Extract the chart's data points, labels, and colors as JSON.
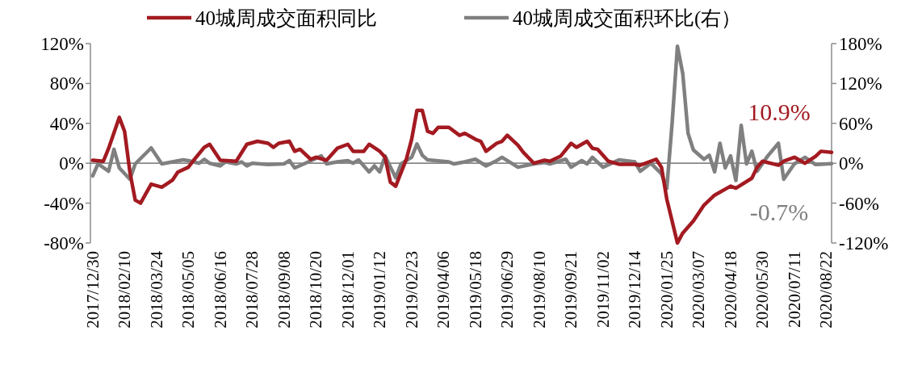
{
  "chart_data": {
    "type": "line",
    "legend": "top",
    "xlim": [
      "2017-12-27",
      "2020-08-29"
    ],
    "xticks": [
      {
        "value": "2017-12-30",
        "label": "2017/12/30"
      },
      {
        "value": "2018-02-10",
        "label": "2018/02/10"
      },
      {
        "value": "2018-03-24",
        "label": "2018/03/24"
      },
      {
        "value": "2018-05-05",
        "label": "2018/05/05"
      },
      {
        "value": "2018-06-16",
        "label": "2018/06/16"
      },
      {
        "value": "2018-07-28",
        "label": "2018/07/28"
      },
      {
        "value": "2018-09-08",
        "label": "2018/09/08"
      },
      {
        "value": "2018-10-20",
        "label": "2018/10/20"
      },
      {
        "value": "2018-12-01",
        "label": "2018/12/01"
      },
      {
        "value": "2019-01-12",
        "label": "2019/01/12"
      },
      {
        "value": "2019-02-23",
        "label": "2019/02/23"
      },
      {
        "value": "2019-04-06",
        "label": "2019/04/06"
      },
      {
        "value": "2019-05-18",
        "label": "2019/05/18"
      },
      {
        "value": "2019-06-29",
        "label": "2019/06/29"
      },
      {
        "value": "2019-08-10",
        "label": "2019/08/10"
      },
      {
        "value": "2019-09-21",
        "label": "2019/09/21"
      },
      {
        "value": "2019-11-02",
        "label": "2019/11/02"
      },
      {
        "value": "2019-12-14",
        "label": "2019/12/14"
      },
      {
        "value": "2020-01-25",
        "label": "2020/01/25"
      },
      {
        "value": "2020-03-07",
        "label": "2020/03/07"
      },
      {
        "value": "2020-04-18",
        "label": "2020/04/18"
      },
      {
        "value": "2020-05-30",
        "label": "2020/05/30"
      },
      {
        "value": "2020-07-11",
        "label": "2020/07/11"
      },
      {
        "value": "2020-08-22",
        "label": "2020/08/22"
      }
    ],
    "ylim": [
      -80,
      120
    ],
    "yticks": [
      {
        "value": -80,
        "label": "-80%"
      },
      {
        "value": -40,
        "label": "-40%"
      },
      {
        "value": 0,
        "label": "0%"
      },
      {
        "value": 40,
        "label": "40%"
      },
      {
        "value": 80,
        "label": "80%"
      },
      {
        "value": 120,
        "label": "120%"
      }
    ],
    "y2lim": [
      -120,
      180
    ],
    "y2ticks": [
      {
        "value": -120,
        "label": "-120%"
      },
      {
        "value": -60,
        "label": "-60%"
      },
      {
        "value": 0,
        "label": "0%"
      },
      {
        "value": 60,
        "label": "60%"
      },
      {
        "value": 120,
        "label": "120%"
      },
      {
        "value": 180,
        "label": "180%"
      }
    ],
    "annotations": [
      {
        "text": "10.9%",
        "x": "2020-08-29",
        "y": 10.9
      },
      {
        "text": "-0.7%",
        "x": "2020-08-29",
        "y": -0.7
      }
    ],
    "series": [
      {
        "name": "40城周成交面积同比",
        "color": "#a31a21",
        "x": [
          "2017-12-30",
          "2018-01-13",
          "2018-01-20",
          "2018-02-03",
          "2018-02-10",
          "2018-02-17",
          "2018-02-24",
          "2018-03-03",
          "2018-03-17",
          "2018-03-31",
          "2018-04-14",
          "2018-04-21",
          "2018-05-05",
          "2018-05-12",
          "2018-05-26",
          "2018-06-02",
          "2018-06-16",
          "2018-07-07",
          "2018-07-21",
          "2018-08-04",
          "2018-08-18",
          "2018-08-25",
          "2018-09-01",
          "2018-09-15",
          "2018-09-22",
          "2018-09-29",
          "2018-10-13",
          "2018-10-20",
          "2018-11-03",
          "2018-11-17",
          "2018-12-01",
          "2018-12-08",
          "2018-12-22",
          "2018-12-29",
          "2019-01-12",
          "2019-01-19",
          "2019-01-26",
          "2019-02-02",
          "2019-02-16",
          "2019-02-23",
          "2019-03-02",
          "2019-03-09",
          "2019-03-16",
          "2019-03-23",
          "2019-03-30",
          "2019-04-13",
          "2019-04-27",
          "2019-05-04",
          "2019-05-18",
          "2019-05-25",
          "2019-06-01",
          "2019-06-15",
          "2019-06-22",
          "2019-06-29",
          "2019-07-13",
          "2019-07-20",
          "2019-08-03",
          "2019-08-17",
          "2019-08-24",
          "2019-09-07",
          "2019-09-21",
          "2019-09-28",
          "2019-10-12",
          "2019-10-19",
          "2019-10-26",
          "2019-11-09",
          "2019-11-23",
          "2019-12-14",
          "2019-12-21",
          "2020-01-11",
          "2020-01-18",
          "2020-01-25",
          "2020-02-08",
          "2020-02-15",
          "2020-02-29",
          "2020-03-14",
          "2020-03-28",
          "2020-04-18",
          "2020-04-25",
          "2020-05-16",
          "2020-05-23",
          "2020-05-30",
          "2020-06-20",
          "2020-06-27",
          "2020-07-11",
          "2020-07-25",
          "2020-08-08",
          "2020-08-15",
          "2020-08-29"
        ],
        "values": [
          3,
          2,
          15,
          46,
          32,
          -9,
          -37,
          -40,
          -21,
          -24,
          -17,
          -9,
          -4,
          3,
          16,
          19,
          3,
          2,
          19,
          22,
          20,
          16,
          20,
          22,
          12,
          14,
          4,
          6,
          3,
          15,
          19,
          12,
          12,
          19,
          12,
          6,
          -19,
          -23,
          4,
          24,
          53,
          53,
          32,
          30,
          36,
          36,
          28,
          30,
          24,
          22,
          12,
          20,
          22,
          28,
          18,
          11,
          0,
          3,
          2,
          7,
          20,
          16,
          22,
          15,
          14,
          2,
          -1,
          -1,
          -2,
          4,
          -4,
          -36,
          -80,
          -70,
          -58,
          -42,
          -32,
          -23,
          -25,
          -15,
          -4,
          2,
          -2,
          2,
          6,
          0,
          7,
          12,
          10.9
        ]
      },
      {
        "name": "40城周成交面积环比(右）",
        "color": "#808080",
        "axis": "y2",
        "x": [
          "2017-12-30",
          "2018-01-06",
          "2018-01-20",
          "2018-01-27",
          "2018-02-03",
          "2018-02-17",
          "2018-02-24",
          "2018-03-17",
          "2018-03-31",
          "2018-04-14",
          "2018-04-28",
          "2018-05-05",
          "2018-05-19",
          "2018-05-26",
          "2018-06-02",
          "2018-06-16",
          "2018-06-23",
          "2018-07-07",
          "2018-07-14",
          "2018-07-21",
          "2018-07-28",
          "2018-08-18",
          "2018-09-08",
          "2018-09-15",
          "2018-09-22",
          "2018-10-06",
          "2018-10-27",
          "2018-11-03",
          "2018-11-17",
          "2018-12-01",
          "2018-12-08",
          "2018-12-15",
          "2018-12-29",
          "2019-01-05",
          "2019-01-12",
          "2019-01-19",
          "2019-02-02",
          "2019-02-09",
          "2019-02-23",
          "2019-03-02",
          "2019-03-09",
          "2019-03-16",
          "2019-04-13",
          "2019-04-20",
          "2019-05-04",
          "2019-05-18",
          "2019-06-01",
          "2019-06-15",
          "2019-06-22",
          "2019-07-13",
          "2019-08-03",
          "2019-08-17",
          "2019-08-24",
          "2019-09-14",
          "2019-09-21",
          "2019-10-05",
          "2019-10-12",
          "2019-10-19",
          "2019-11-02",
          "2019-11-23",
          "2019-12-14",
          "2019-12-21",
          "2020-01-04",
          "2020-01-18",
          "2020-01-25",
          "2020-02-01",
          "2020-02-08",
          "2020-02-15",
          "2020-02-22",
          "2020-02-29",
          "2020-03-14",
          "2020-03-21",
          "2020-03-28",
          "2020-04-04",
          "2020-04-11",
          "2020-04-18",
          "2020-04-25",
          "2020-05-02",
          "2020-05-09",
          "2020-05-16",
          "2020-05-23",
          "2020-06-06",
          "2020-06-20",
          "2020-06-27",
          "2020-07-11",
          "2020-07-25",
          "2020-08-08",
          "2020-08-29"
        ],
        "values": [
          -19,
          -1,
          -12,
          21,
          -7,
          -24,
          -1,
          23,
          -1,
          2,
          5,
          4,
          0,
          6,
          0,
          -4,
          2,
          -1,
          2,
          -4,
          0,
          -2,
          -1,
          4,
          -7,
          0,
          11,
          -1,
          2,
          4,
          0,
          5,
          -13,
          -4,
          -13,
          11,
          -22,
          -1,
          9,
          29,
          12,
          5,
          2,
          -1,
          2,
          6,
          -4,
          4,
          9,
          -6,
          -1,
          1,
          -1,
          6,
          -6,
          4,
          -1,
          9,
          -6,
          5,
          2,
          -12,
          0,
          -16,
          -38,
          60,
          176,
          135,
          45,
          20,
          6,
          12,
          -13,
          30,
          -7,
          11,
          -26,
          57,
          -1,
          18,
          -12,
          11,
          30,
          -24,
          -1,
          9,
          -2,
          -0.7
        ]
      }
    ]
  }
}
